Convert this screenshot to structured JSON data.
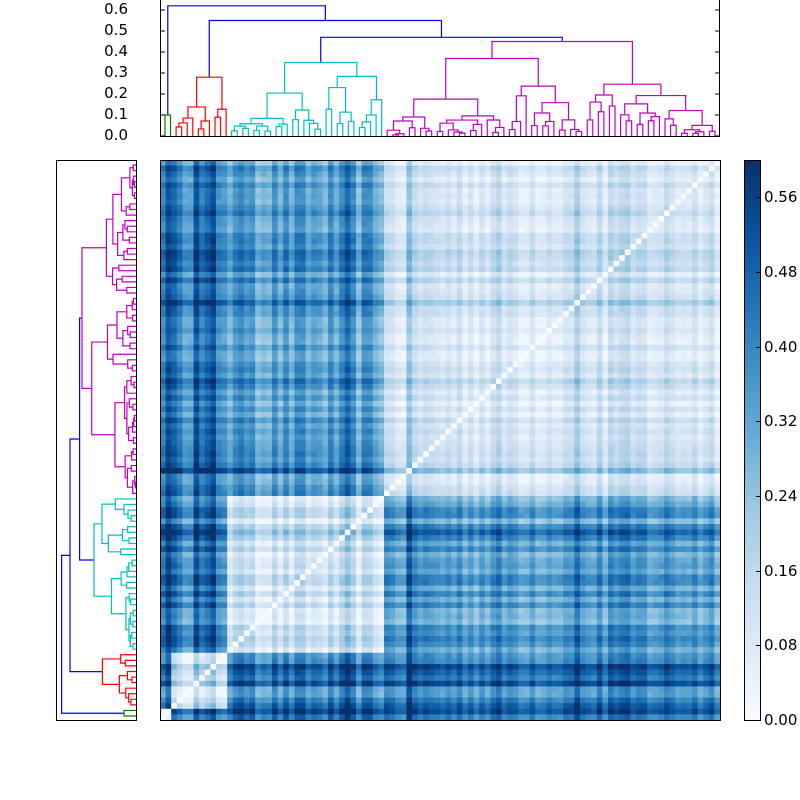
{
  "chart_data": {
    "type": "heatmap",
    "title": "",
    "description": "Clustered heatmap (distance matrix) with hierarchical clustering dendrograms on top and left, plus a colorbar",
    "colormap": "Blues",
    "n_items": 100,
    "top_dendrogram": {
      "ylabel": "",
      "yticks": [
        "0.0",
        "0.1",
        "0.2",
        "0.3",
        "0.4",
        "0.5",
        "0.6"
      ],
      "ylim": [
        0.0,
        0.65
      ],
      "cluster_colors": {
        "green": "#008000",
        "red": "#ff0000",
        "cyan": "#00bfbf",
        "magenta": "#bf00bf",
        "link": "#0000ff"
      },
      "clusters": [
        {
          "color": "green",
          "size": 2,
          "height": 0.1
        },
        {
          "color": "red",
          "size": 10,
          "height": 0.28
        },
        {
          "color": "cyan",
          "size": 28,
          "height": 0.35
        },
        {
          "color": "magenta",
          "size": 60,
          "height": 0.45
        }
      ],
      "merges": [
        {
          "between": "cyan+magenta",
          "height": 0.47
        },
        {
          "between": "red+(cyan,magenta)",
          "height": 0.55
        },
        {
          "between": "green+rest",
          "height": 0.62
        }
      ]
    },
    "colorbar": {
      "ticks": [
        "0.00",
        "0.08",
        "0.16",
        "0.24",
        "0.32",
        "0.40",
        "0.48",
        "0.56"
      ],
      "range": [
        0.0,
        0.6
      ]
    },
    "heatmap_blocks": [
      {
        "rows": "magenta cluster",
        "cols": "magenta cluster",
        "typical_value": 0.12
      },
      {
        "rows": "cyan cluster",
        "cols": "cyan cluster",
        "typical_value": 0.12
      },
      {
        "rows": "magenta cluster",
        "cols": "cyan cluster",
        "typical_value": 0.35
      },
      {
        "rows": "red cluster",
        "cols": "others",
        "typical_value": 0.4
      },
      {
        "rows": "green cluster",
        "cols": "others",
        "typical_value": 0.5
      }
    ],
    "diagonal_value": 0.0
  }
}
